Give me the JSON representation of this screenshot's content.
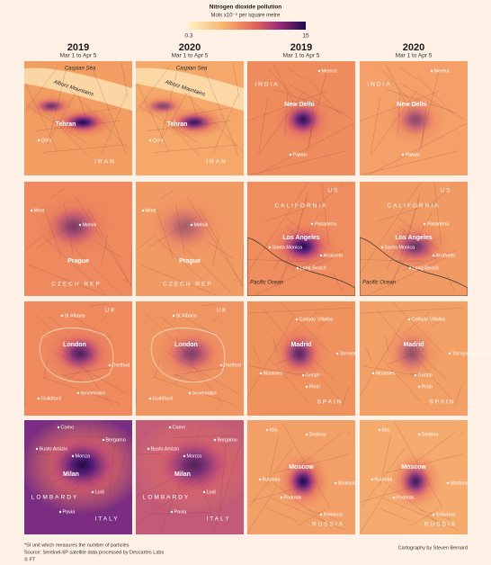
{
  "legend": {
    "title": "Nitrogen dioxide pollution",
    "unit": "Mols x10⁻⁵ per square metre",
    "ticks": [
      0.3,
      15
    ]
  },
  "columns": [
    {
      "year": "2019",
      "period": "Mar 1 to Apr 5"
    },
    {
      "year": "2020",
      "period": "Mar 1 to Apr 5"
    },
    {
      "year": "2019",
      "period": "Mar 1 to Apr 5"
    },
    {
      "year": "2020",
      "period": "Mar 1 to Apr 5"
    }
  ],
  "maps": [
    {
      "labels": [
        "Caspian Sea",
        "Alborz Mountains",
        "Tehran",
        "Qom",
        "IRAN"
      ]
    },
    {
      "labels": [
        "INDIA",
        "Meerut",
        "New Delhi",
        "Palwal"
      ]
    },
    {
      "labels": [
        "Most",
        "Melnik",
        "Prague",
        "CZECH REP"
      ]
    },
    {
      "labels": [
        "US",
        "CALIFORNIA",
        "Pasadena",
        "Los Angeles",
        "Santa Monica",
        "Anaheim",
        "Long Beach",
        "Pacific Ocean"
      ]
    },
    {
      "labels": [
        "UK",
        "St Albans",
        "London",
        "Dartford",
        "Sevenoaks",
        "Guildford"
      ]
    },
    {
      "labels": [
        "Collado Villalba",
        "Madrid",
        "Torrejon de Ardoz",
        "Mostoles",
        "Getafe",
        "Pinto",
        "SPAIN"
      ]
    },
    {
      "labels": [
        "Como",
        "Bergamo",
        "Busto Arsizio",
        "Monza",
        "Milan",
        "Lodi",
        "LOMBARDY",
        "Pavia",
        "ITALY"
      ]
    },
    {
      "labels": [
        "Klin",
        "Dmitrov",
        "Moscow",
        "Kubinka",
        "Podolsk",
        "Shatura",
        "Kolomna",
        "RUSSIA"
      ]
    }
  ],
  "footer": {
    "notes": [
      "*SI unit which measures the number of particles",
      "Source: Sentinel-5P satellite data processed by Descartes Labs",
      "© FT"
    ],
    "credit": "Cartography by Steven Bernard"
  }
}
